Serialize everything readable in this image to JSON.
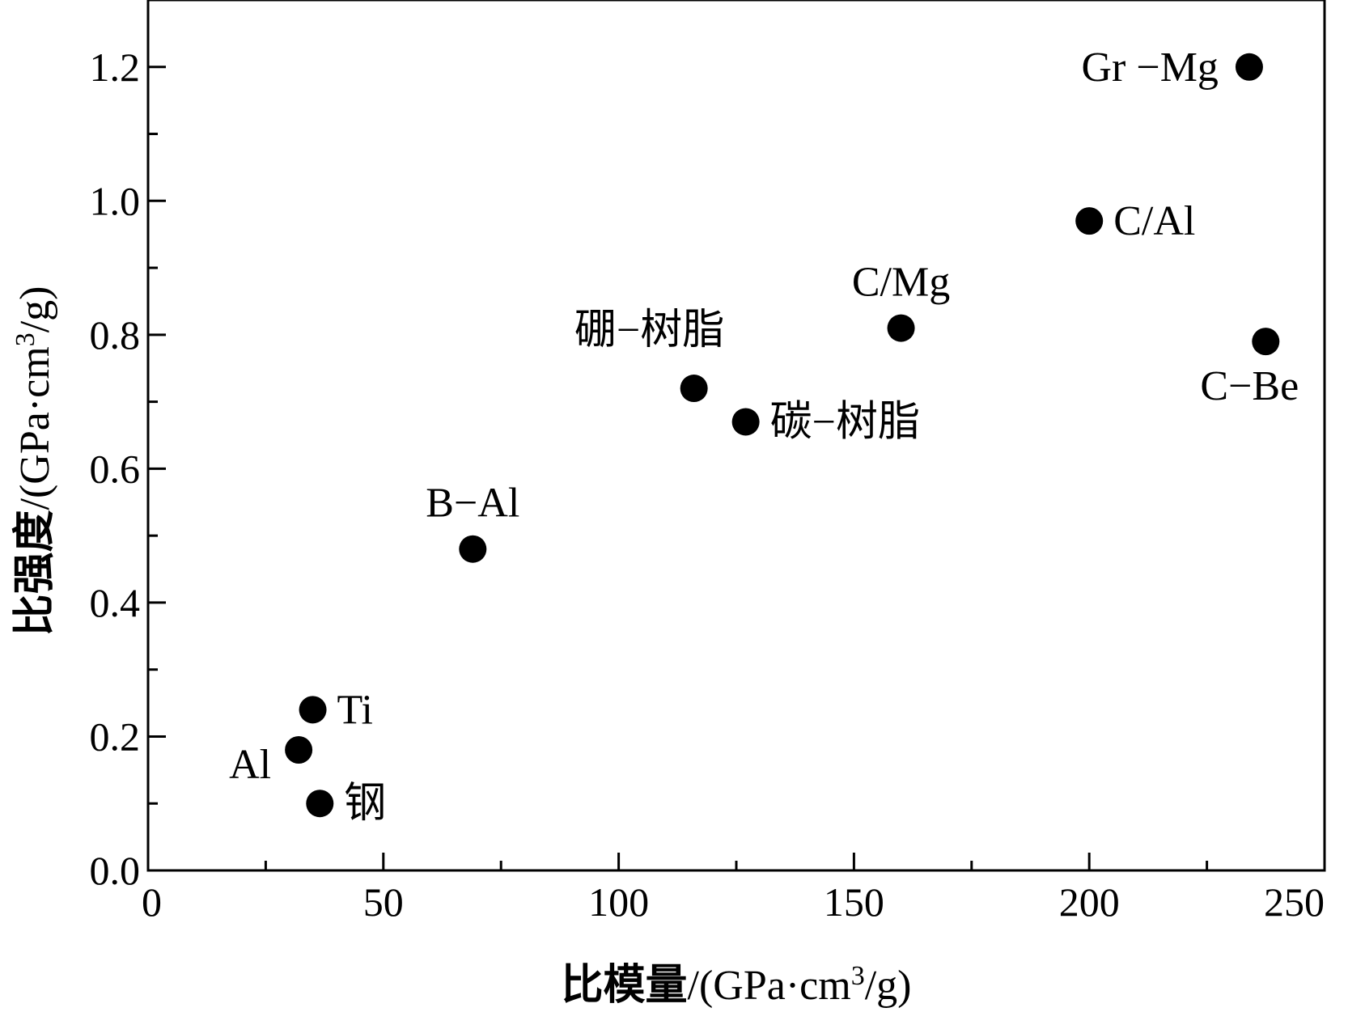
{
  "chart_data": {
    "type": "scatter",
    "xlabel": {
      "cjk": "比模量",
      "unit_pre": "/(GPa·cm",
      "sup": "3",
      "unit_post": "/g)"
    },
    "ylabel": {
      "cjk": "比强度",
      "unit_pre": "/(GPa·cm",
      "sup": "3",
      "unit_post": "/g)"
    },
    "xlim": [
      0,
      250
    ],
    "ylim": [
      0.0,
      1.3
    ],
    "x_ticks": [
      "0",
      "50",
      "100",
      "150",
      "200",
      "250"
    ],
    "y_ticks": [
      "0.0",
      "0.2",
      "0.4",
      "0.6",
      "0.8",
      "1.0",
      "1.2"
    ],
    "x_tick_values": [
      0,
      50,
      100,
      150,
      200,
      250
    ],
    "y_tick_values": [
      0.0,
      0.2,
      0.4,
      0.6,
      0.8,
      1.0,
      1.2
    ],
    "x_minor_step": 25,
    "y_minor_step": 0.1,
    "grid": false,
    "marker_color": "#000000",
    "points": [
      {
        "label": "钢",
        "x": 36.5,
        "y": 0.1,
        "anchor": "right"
      },
      {
        "label": "Al",
        "x": 32,
        "y": 0.18,
        "anchor": "below-left"
      },
      {
        "label": "Ti",
        "x": 35,
        "y": 0.24,
        "anchor": "right"
      },
      {
        "label": "B−Al",
        "x": 69,
        "y": 0.48,
        "anchor": "above"
      },
      {
        "label": "硼−树脂",
        "x": 116,
        "y": 0.72,
        "anchor": "above-left"
      },
      {
        "label": "碳−树脂",
        "x": 127,
        "y": 0.67,
        "anchor": "right"
      },
      {
        "label": "C/Mg",
        "x": 160,
        "y": 0.81,
        "anchor": "above"
      },
      {
        "label": "C/Al",
        "x": 200,
        "y": 0.97,
        "anchor": "right"
      },
      {
        "label": "Gr −Mg",
        "x": 234,
        "y": 1.2,
        "anchor": "left"
      },
      {
        "label": "C−Be",
        "x": 237.5,
        "y": 0.79,
        "anchor": "below"
      }
    ]
  }
}
